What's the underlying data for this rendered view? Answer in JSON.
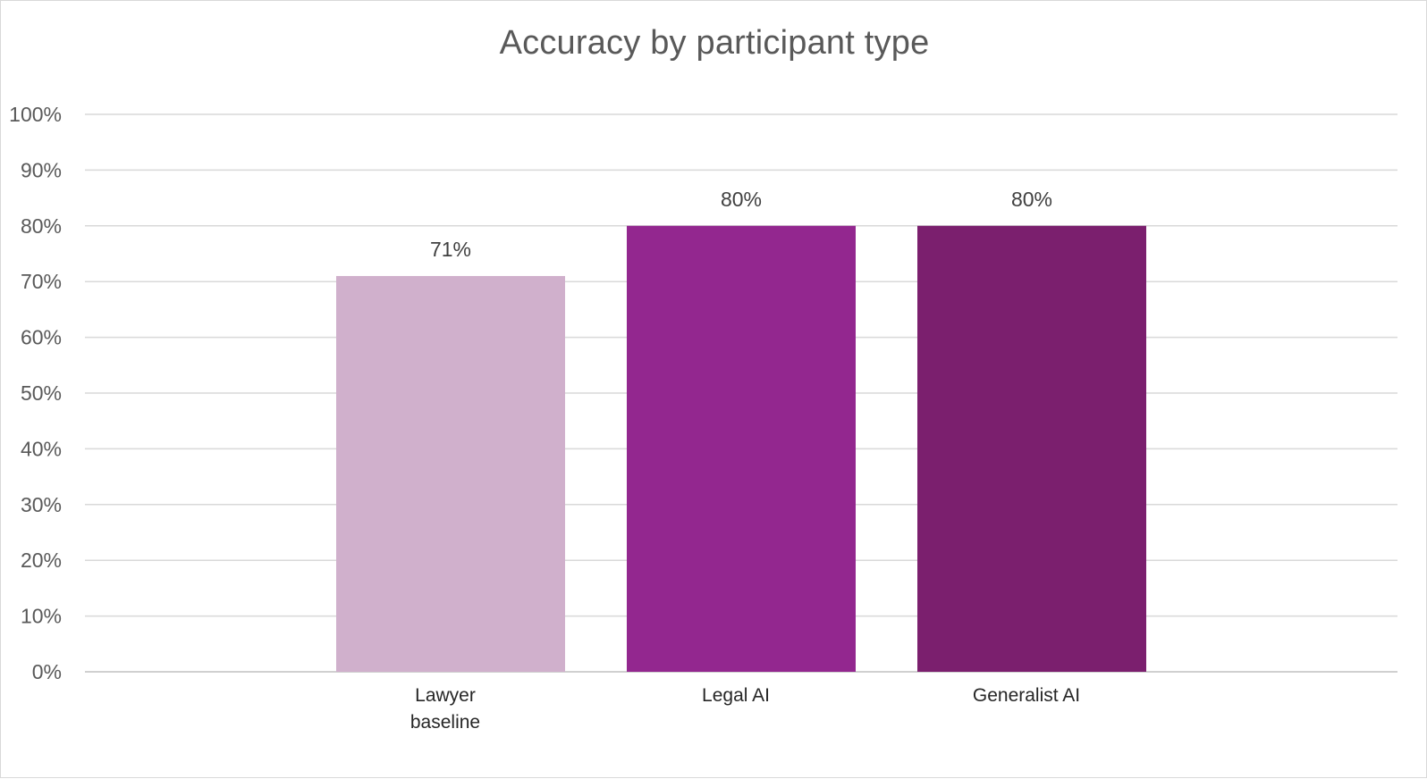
{
  "chart_data": {
    "type": "bar",
    "title": "Accuracy by participant type",
    "xlabel": "",
    "ylabel": "",
    "ylim": [
      0,
      100
    ],
    "yticks": [
      "0%",
      "10%",
      "20%",
      "30%",
      "40%",
      "50%",
      "60%",
      "70%",
      "80%",
      "90%",
      "100%"
    ],
    "categories": [
      [
        "Lawyer",
        "baseline"
      ],
      [
        "Legal AI"
      ],
      [
        "Generalist AI"
      ]
    ],
    "values": [
      71,
      80,
      80
    ],
    "data_labels": [
      "71%",
      "80%",
      "80%"
    ],
    "colors": [
      "#d0b0cc",
      "#93278f",
      "#7b1f6e"
    ],
    "grid": true,
    "legend": "none"
  }
}
